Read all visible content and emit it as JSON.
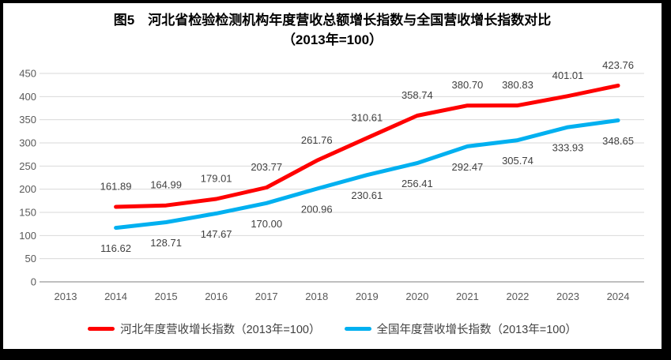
{
  "figure": {
    "title_line1": "图5　河北省检验检测机构年度营收总额增长指数与全国营收增长指数对比",
    "title_line2": "（2013年=100）"
  },
  "chart_data": {
    "type": "line",
    "title": "图5　河北省检验检测机构年度营收总额增长指数与全国营收增长指数对比（2013年=100）",
    "categories": [
      "2013",
      "2014",
      "2015",
      "2016",
      "2017",
      "2018",
      "2019",
      "2020",
      "2021",
      "2022",
      "2023",
      "2024"
    ],
    "xlabel": "",
    "ylabel": "",
    "ylim": [
      0,
      450
    ],
    "ytick_step": 50,
    "ytick_labels": [
      "0",
      "50",
      "100",
      "150",
      "200",
      "250",
      "300",
      "350",
      "400",
      "450"
    ],
    "grid": true,
    "legend_position": "bottom",
    "series": [
      {
        "id": "hebei",
        "name": "河北年度营收增长指数（2013年=100）",
        "color": "#FF0000",
        "start_category_index": 1,
        "values": [
          161.89,
          164.99,
          179.01,
          203.77,
          261.76,
          310.61,
          358.74,
          380.7,
          380.83,
          401.01,
          423.76
        ],
        "labels": [
          "161.89",
          "164.99",
          "179.01",
          "203.77",
          "261.76",
          "310.61",
          "358.74",
          "380.70",
          "380.83",
          "401.01",
          "423.76"
        ],
        "label_position": "above"
      },
      {
        "id": "national",
        "name": "全国年度营收增长指数（2013年=100）",
        "color": "#00B0F0",
        "start_category_index": 1,
        "values": [
          116.62,
          128.71,
          147.67,
          170.0,
          200.96,
          230.61,
          256.41,
          292.47,
          305.74,
          333.93,
          348.65
        ],
        "labels": [
          "116.62",
          "128.71",
          "147.67",
          "170.00",
          "200.96",
          "230.61",
          "256.41",
          "292.47",
          "305.74",
          "333.93",
          "348.65"
        ],
        "label_position": "below"
      }
    ]
  },
  "colors": {
    "background": "#FFFFFF",
    "frame": "#000000",
    "gridline": "#D9D9D9",
    "axis_line": "#BFBFBF",
    "axis_text": "#595959",
    "data_label_text": "#404040",
    "title_text": "#000000"
  }
}
